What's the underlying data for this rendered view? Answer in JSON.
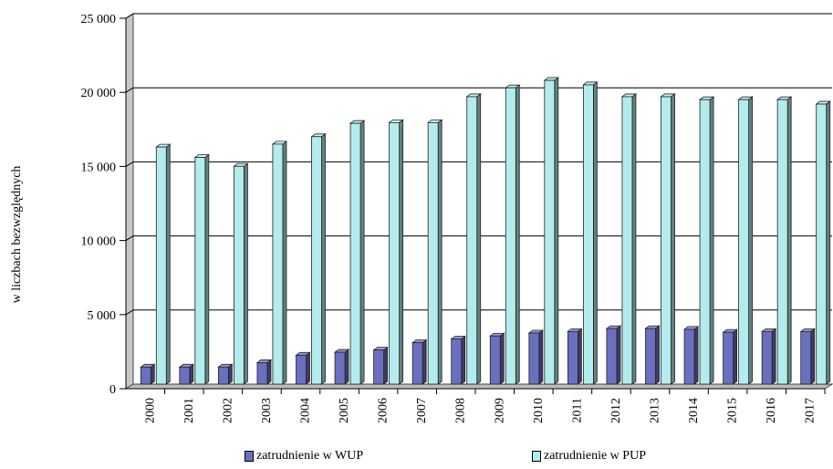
{
  "chart_data": {
    "type": "bar",
    "title": "",
    "xlabel": "",
    "ylabel": "w liczbach bezwzględnych",
    "ylim": [
      0,
      25000
    ],
    "yticks": [
      0,
      5000,
      10000,
      15000,
      20000,
      25000
    ],
    "ytick_labels": [
      "0",
      "5 000",
      "10 000",
      "15 000",
      "20 000",
      "25 000"
    ],
    "grid": true,
    "legend_position": "bottom",
    "categories": [
      "2000",
      "2001",
      "2002",
      "2003",
      "2004",
      "2005",
      "2006",
      "2007",
      "2008",
      "2009",
      "2010",
      "2011",
      "2012",
      "2013",
      "2014",
      "2015",
      "2016",
      "2017"
    ],
    "series": [
      {
        "name": "zatrudnienie w WUP",
        "color": "#6b6fc0",
        "values": [
          1150,
          1150,
          1150,
          1450,
          1950,
          2150,
          2300,
          2800,
          3050,
          3250,
          3450,
          3550,
          3750,
          3750,
          3700,
          3500,
          3550,
          3550
        ]
      },
      {
        "name": "zatrudnienie w PUP",
        "color": "#b3ecec",
        "values": [
          16000,
          15300,
          14700,
          16200,
          16700,
          17600,
          17650,
          17650,
          19400,
          20000,
          20500,
          20200,
          19400,
          19400,
          19200,
          19200,
          19200,
          18900
        ]
      }
    ]
  }
}
